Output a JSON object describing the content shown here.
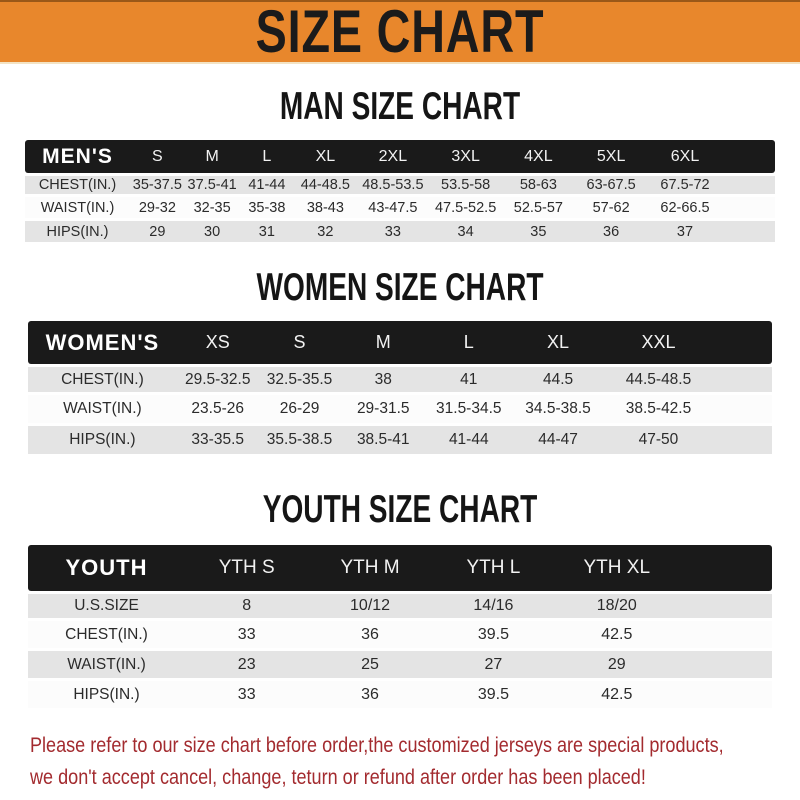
{
  "colors": {
    "banner_orange": "#E8872C",
    "band_black": "#1A1A1A",
    "stripe_gray": "#E4E4E4",
    "footer_red": "#A32B2F"
  },
  "banner": {
    "title": "SIZE CHART"
  },
  "sections": [
    {
      "heading": "MAN SIZE CHART",
      "table": {
        "label": "MEN'S",
        "columns": [
          "S",
          "M",
          "L",
          "XL",
          "2XL",
          "3XL",
          "4XL",
          "5XL",
          "6XL"
        ],
        "rows": [
          {
            "label": "CHEST(IN.)",
            "values": [
              "35-37.5",
              "37.5-41",
              "41-44",
              "44-48.5",
              "48.5-53.5",
              "53.5-58",
              "58-63",
              "63-67.5",
              "67.5-72"
            ]
          },
          {
            "label": "WAIST(IN.)",
            "values": [
              "29-32",
              "32-35",
              "35-38",
              "38-43",
              "43-47.5",
              "47.5-52.5",
              "52.5-57",
              "57-62",
              "62-66.5"
            ]
          },
          {
            "label": "HIPS(IN.)",
            "values": [
              "29",
              "30",
              "31",
              "32",
              "33",
              "34",
              "35",
              "36",
              "37"
            ]
          }
        ]
      }
    },
    {
      "heading": "WOMEN SIZE CHART",
      "table": {
        "label": "WOMEN'S",
        "columns": [
          "XS",
          "S",
          "M",
          "L",
          "XL",
          "XXL"
        ],
        "rows": [
          {
            "label": "CHEST(IN.)",
            "values": [
              "29.5-32.5",
              "32.5-35.5",
              "38",
              "41",
              "44.5",
              "44.5-48.5"
            ]
          },
          {
            "label": "WAIST(IN.)",
            "values": [
              "23.5-26",
              "26-29",
              "29-31.5",
              "31.5-34.5",
              "34.5-38.5",
              "38.5-42.5"
            ]
          },
          {
            "label": "HIPS(IN.)",
            "values": [
              "33-35.5",
              "35.5-38.5",
              "38.5-41",
              "41-44",
              "44-47",
              "47-50"
            ]
          }
        ]
      }
    },
    {
      "heading": "YOUTH SIZE CHART",
      "table": {
        "label": "YOUTH",
        "columns": [
          "YTH S",
          "YTH M",
          "YTH L",
          "YTH XL"
        ],
        "rows": [
          {
            "label": "U.S.SIZE",
            "values": [
              "8",
              "10/12",
              "14/16",
              "18/20"
            ]
          },
          {
            "label": "CHEST(IN.)",
            "values": [
              "33",
              "36",
              "39.5",
              "42.5"
            ]
          },
          {
            "label": "WAIST(IN.)",
            "values": [
              "23",
              "25",
              "27",
              "29"
            ]
          },
          {
            "label": "HIPS(IN.)",
            "values": [
              "33",
              "36",
              "39.5",
              "42.5"
            ]
          }
        ]
      }
    }
  ],
  "footer": {
    "line1": "Please refer to our size chart before order,the customized jerseys are special products,",
    "line2": "we don't accept cancel, change, teturn or refund after order has been placed!"
  }
}
